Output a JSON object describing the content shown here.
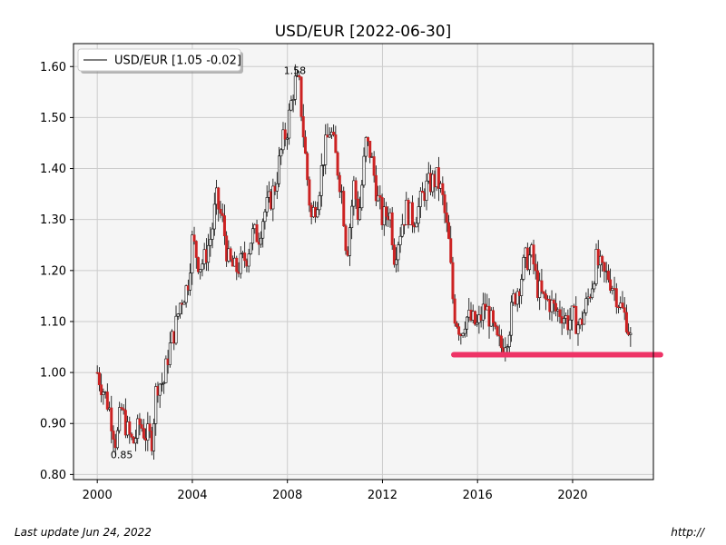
{
  "chart_data": {
    "type": "candlestick",
    "title": "USD/EUR [2022-06-30]",
    "legend": {
      "label": "USD/EUR [1.05 -0.02]",
      "placement": "top-left"
    },
    "xlabel": "",
    "ylabel": "",
    "x_ticks": [
      "2000",
      "2004",
      "2008",
      "2012",
      "2016",
      "2020"
    ],
    "y_ticks": [
      "0.80",
      "0.90",
      "1.00",
      "1.10",
      "1.20",
      "1.30",
      "1.40",
      "1.50",
      "1.60"
    ],
    "xlim": [
      1999.0,
      2023.4
    ],
    "ylim": [
      0.79,
      1.645
    ],
    "grid": true,
    "annotations": [
      {
        "text": "1.58",
        "x": 2008.2,
        "y": 1.58,
        "kind": "max"
      },
      {
        "text": "0.85",
        "x": 2000.8,
        "y": 0.85,
        "kind": "min"
      }
    ],
    "support_line": {
      "y": 1.035,
      "x_start": 2015.0,
      "x_end": 2023.7,
      "color": "#ee3366"
    },
    "price_path": [
      [
        2000.0,
        1.0
      ],
      [
        2000.3,
        0.96
      ],
      [
        2000.5,
        0.93
      ],
      [
        2000.8,
        0.86
      ],
      [
        2001.0,
        0.93
      ],
      [
        2001.3,
        0.88
      ],
      [
        2001.5,
        0.86
      ],
      [
        2001.8,
        0.9
      ],
      [
        2002.0,
        0.88
      ],
      [
        2002.3,
        0.87
      ],
      [
        2002.5,
        0.98
      ],
      [
        2002.8,
        0.98
      ],
      [
        2003.0,
        1.04
      ],
      [
        2003.3,
        1.09
      ],
      [
        2003.5,
        1.14
      ],
      [
        2003.8,
        1.17
      ],
      [
        2004.0,
        1.26
      ],
      [
        2004.3,
        1.21
      ],
      [
        2004.5,
        1.22
      ],
      [
        2004.8,
        1.27
      ],
      [
        2005.0,
        1.34
      ],
      [
        2005.3,
        1.29
      ],
      [
        2005.5,
        1.22
      ],
      [
        2005.8,
        1.2
      ],
      [
        2006.0,
        1.21
      ],
      [
        2006.3,
        1.23
      ],
      [
        2006.5,
        1.27
      ],
      [
        2006.8,
        1.27
      ],
      [
        2007.0,
        1.31
      ],
      [
        2007.3,
        1.34
      ],
      [
        2007.5,
        1.37
      ],
      [
        2007.8,
        1.45
      ],
      [
        2008.0,
        1.48
      ],
      [
        2008.3,
        1.57
      ],
      [
        2008.5,
        1.56
      ],
      [
        2008.8,
        1.4
      ],
      [
        2009.0,
        1.3
      ],
      [
        2009.3,
        1.35
      ],
      [
        2009.5,
        1.42
      ],
      [
        2009.8,
        1.48
      ],
      [
        2010.0,
        1.43
      ],
      [
        2010.3,
        1.35
      ],
      [
        2010.5,
        1.23
      ],
      [
        2010.8,
        1.37
      ],
      [
        2011.0,
        1.3
      ],
      [
        2011.3,
        1.45
      ],
      [
        2011.5,
        1.43
      ],
      [
        2011.8,
        1.34
      ],
      [
        2012.0,
        1.3
      ],
      [
        2012.3,
        1.32
      ],
      [
        2012.5,
        1.23
      ],
      [
        2012.8,
        1.29
      ],
      [
        2013.0,
        1.32
      ],
      [
        2013.3,
        1.3
      ],
      [
        2013.5,
        1.32
      ],
      [
        2013.8,
        1.36
      ],
      [
        2014.0,
        1.37
      ],
      [
        2014.3,
        1.38
      ],
      [
        2014.5,
        1.35
      ],
      [
        2014.8,
        1.25
      ],
      [
        2015.0,
        1.12
      ],
      [
        2015.3,
        1.08
      ],
      [
        2015.5,
        1.11
      ],
      [
        2015.8,
        1.1
      ],
      [
        2016.0,
        1.09
      ],
      [
        2016.3,
        1.13
      ],
      [
        2016.5,
        1.11
      ],
      [
        2016.8,
        1.06
      ],
      [
        2017.0,
        1.05
      ],
      [
        2017.3,
        1.08
      ],
      [
        2017.5,
        1.14
      ],
      [
        2017.8,
        1.18
      ],
      [
        2018.0,
        1.22
      ],
      [
        2018.3,
        1.23
      ],
      [
        2018.5,
        1.17
      ],
      [
        2018.8,
        1.14
      ],
      [
        2019.0,
        1.14
      ],
      [
        2019.3,
        1.12
      ],
      [
        2019.5,
        1.12
      ],
      [
        2019.8,
        1.1
      ],
      [
        2020.0,
        1.11
      ],
      [
        2020.3,
        1.09
      ],
      [
        2020.5,
        1.12
      ],
      [
        2020.8,
        1.17
      ],
      [
        2021.0,
        1.22
      ],
      [
        2021.3,
        1.19
      ],
      [
        2021.5,
        1.19
      ],
      [
        2021.8,
        1.16
      ],
      [
        2022.0,
        1.13
      ],
      [
        2022.3,
        1.1
      ],
      [
        2022.5,
        1.05
      ]
    ]
  },
  "footer": {
    "left_text": "Last update Jun 24, 2022",
    "right_text": "http://"
  },
  "colors": {
    "plot_bg": "#f5f5f5",
    "grid": "#cccccc",
    "candle_up": "#000000",
    "candle_down": "#cc2222",
    "support_line": "#ee3366"
  }
}
